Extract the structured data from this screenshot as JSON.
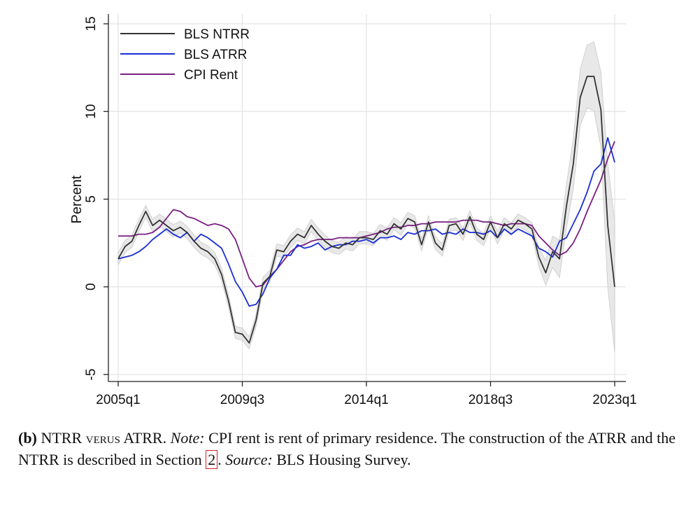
{
  "chart_data": {
    "type": "line",
    "ylabel": "Percent",
    "ylim": [
      -5,
      15
    ],
    "yticks": [
      -5,
      0,
      5,
      10,
      15
    ],
    "xlim": [
      "2005q1",
      "2023q1"
    ],
    "xticks": [
      "2005q1",
      "2009q3",
      "2014q1",
      "2018q3",
      "2023q1"
    ],
    "grid": true,
    "legend_position": "top-left",
    "x": [
      "2005q1",
      "2005q2",
      "2005q3",
      "2005q4",
      "2006q1",
      "2006q2",
      "2006q3",
      "2006q4",
      "2007q1",
      "2007q2",
      "2007q3",
      "2007q4",
      "2008q1",
      "2008q2",
      "2008q3",
      "2008q4",
      "2009q1",
      "2009q2",
      "2009q3",
      "2009q4",
      "2010q1",
      "2010q2",
      "2010q3",
      "2010q4",
      "2011q1",
      "2011q2",
      "2011q3",
      "2011q4",
      "2012q1",
      "2012q2",
      "2012q3",
      "2012q4",
      "2013q1",
      "2013q2",
      "2013q3",
      "2013q4",
      "2014q1",
      "2014q2",
      "2014q3",
      "2014q4",
      "2015q1",
      "2015q2",
      "2015q3",
      "2015q4",
      "2016q1",
      "2016q2",
      "2016q3",
      "2016q4",
      "2017q1",
      "2017q2",
      "2017q3",
      "2017q4",
      "2018q1",
      "2018q2",
      "2018q3",
      "2018q4",
      "2019q1",
      "2019q2",
      "2019q3",
      "2019q4",
      "2020q1",
      "2020q2",
      "2020q3",
      "2020q4",
      "2021q1",
      "2021q2",
      "2021q3",
      "2021q4",
      "2022q1",
      "2022q2",
      "2022q3",
      "2022q4",
      "2023q1"
    ],
    "series": [
      {
        "name": "BLS NTRR",
        "color": "#333333",
        "values": [
          1.6,
          2.3,
          2.6,
          3.5,
          4.3,
          3.5,
          3.8,
          3.5,
          3.2,
          3.4,
          3.1,
          2.6,
          2.2,
          2.0,
          1.6,
          0.7,
          -0.8,
          -2.6,
          -2.7,
          -3.2,
          -1.9,
          0.2,
          0.6,
          2.1,
          2.0,
          2.6,
          3.0,
          2.8,
          3.5,
          3.0,
          2.6,
          2.3,
          2.2,
          2.5,
          2.4,
          2.8,
          2.8,
          2.7,
          3.2,
          3.0,
          3.6,
          3.3,
          3.9,
          3.7,
          2.4,
          3.7,
          2.5,
          2.1,
          3.5,
          3.6,
          3.0,
          4.0,
          3.0,
          2.7,
          3.7,
          2.8,
          3.6,
          3.3,
          3.8,
          3.6,
          3.3,
          1.7,
          0.8,
          2.0,
          1.6,
          4.6,
          7.0,
          10.8,
          12.0,
          12.0,
          10.1,
          3.5,
          0.0
        ]
      },
      {
        "name": "BLS ATRR",
        "color": "#1a2fd6",
        "values": [
          1.6,
          1.7,
          1.8,
          2.0,
          2.3,
          2.7,
          3.0,
          3.3,
          3.0,
          2.8,
          3.1,
          2.6,
          3.0,
          2.8,
          2.5,
          2.2,
          1.3,
          0.3,
          -0.3,
          -1.1,
          -1.0,
          -0.4,
          0.5,
          1.0,
          1.8,
          1.8,
          2.4,
          2.2,
          2.3,
          2.5,
          2.1,
          2.3,
          2.4,
          2.4,
          2.6,
          2.6,
          2.7,
          2.5,
          2.8,
          2.8,
          2.9,
          2.7,
          3.1,
          3.0,
          3.2,
          3.2,
          3.3,
          3.0,
          3.1,
          3.0,
          3.3,
          3.1,
          3.1,
          3.0,
          3.2,
          2.8,
          3.3,
          3.0,
          3.3,
          3.1,
          2.9,
          2.2,
          2.0,
          1.7,
          2.6,
          2.8,
          3.6,
          4.4,
          5.4,
          6.6,
          7.0,
          8.5,
          7.1
        ]
      },
      {
        "name": "CPI Rent",
        "color": "#7a1f82",
        "values": [
          2.9,
          2.9,
          2.9,
          3.0,
          3.0,
          3.1,
          3.4,
          3.9,
          4.4,
          4.3,
          4.0,
          3.9,
          3.7,
          3.5,
          3.6,
          3.5,
          3.3,
          2.7,
          1.6,
          0.5,
          0.0,
          0.1,
          0.6,
          1.0,
          1.5,
          2.0,
          2.3,
          2.4,
          2.6,
          2.7,
          2.7,
          2.7,
          2.8,
          2.8,
          2.8,
          2.8,
          2.9,
          3.0,
          3.1,
          3.3,
          3.4,
          3.4,
          3.5,
          3.5,
          3.6,
          3.6,
          3.7,
          3.7,
          3.7,
          3.7,
          3.8,
          3.8,
          3.8,
          3.7,
          3.7,
          3.6,
          3.5,
          3.6,
          3.6,
          3.6,
          3.5,
          2.9,
          2.5,
          2.1,
          1.8,
          2.0,
          2.5,
          3.3,
          4.3,
          5.2,
          6.1,
          7.3,
          8.3
        ]
      }
    ]
  },
  "caption": {
    "label": "(b)",
    "title_a": "NTRR",
    "title_verus": "verus",
    "title_b": "ATRR.",
    "note_label": "Note:",
    "note_text": "CPI rent is rent of primary residence. The construction of the ATRR and the NTRR is described in Section",
    "section_ref": "2",
    "after_ref": ".",
    "source_label": "Source:",
    "source_text": "BLS Housing Survey."
  }
}
